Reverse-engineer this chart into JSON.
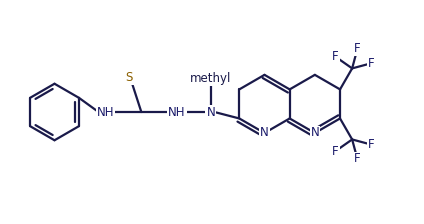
{
  "bg_color": "#ffffff",
  "bond_color": "#1a1a4a",
  "n_color": "#1a1a6a",
  "s_color": "#8B6000",
  "f_color": "#1a1a6a",
  "lw": 1.6,
  "fs": 8.5,
  "fig_w": 4.24,
  "fig_h": 2.24,
  "dpi": 100,
  "xlim": [
    0,
    10.5
  ],
  "ylim": [
    0,
    5.5
  ]
}
